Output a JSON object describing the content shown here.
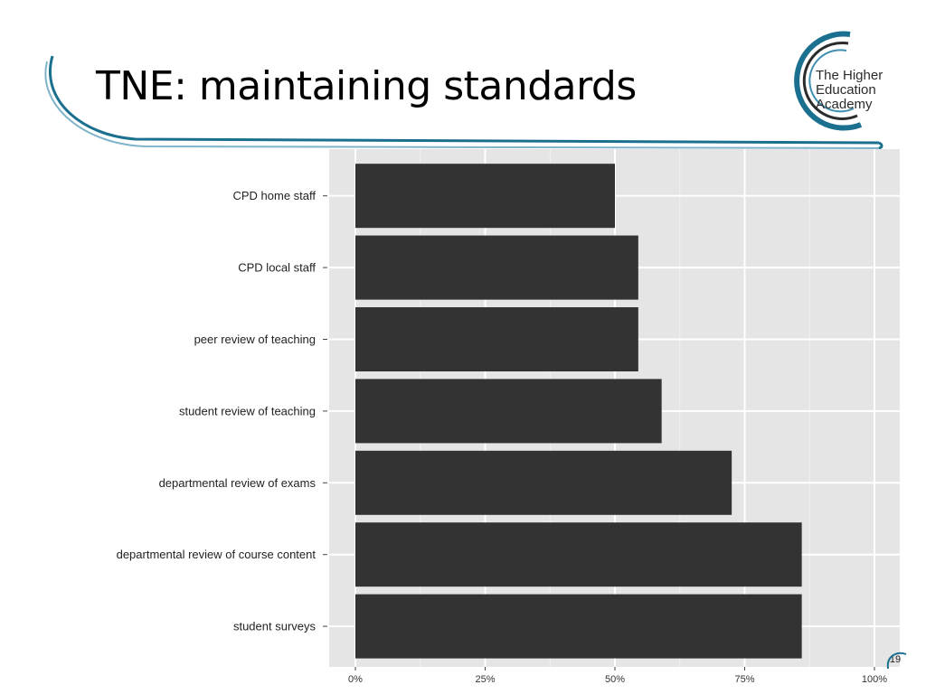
{
  "slide": {
    "title": "TNE: maintaining standards",
    "page_number": "19"
  },
  "logo": {
    "line1": "The Higher",
    "line2": "Education",
    "line3": "Academy"
  },
  "colors": {
    "bar": "#333333",
    "panel": "#e5e5e5",
    "grid": "#ffffff",
    "accent": "#1b6f8f"
  },
  "chart_data": {
    "type": "bar",
    "orientation": "horizontal",
    "categories": [
      "CPD home staff",
      "CPD local staff",
      "peer review of teaching",
      "student review of teaching",
      "departmental review of exams",
      "departmental review of course content",
      "student surveys"
    ],
    "values": [
      0.5,
      0.545,
      0.545,
      0.59,
      0.725,
      0.86,
      0.86
    ],
    "xlim": [
      0,
      1
    ],
    "xticks": [
      0,
      0.25,
      0.5,
      0.75,
      1.0
    ],
    "xtick_labels": [
      "0%",
      "25%",
      "50%",
      "75%",
      "100%"
    ],
    "grid": true,
    "legend": "none"
  }
}
